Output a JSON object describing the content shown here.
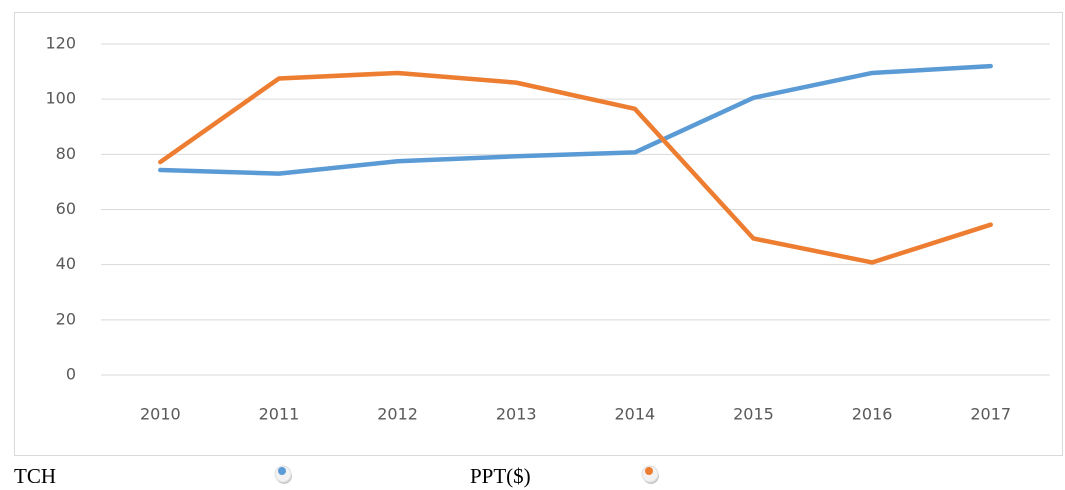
{
  "chart_data": {
    "type": "line",
    "categories": [
      "2010",
      "2011",
      "2012",
      "2013",
      "2014",
      "2015",
      "2016",
      "2017"
    ],
    "series": [
      {
        "name": "TCH",
        "color": "#5b9bd5",
        "values": [
          74.3,
          73,
          77.5,
          79.3,
          80.7,
          100.5,
          109.5,
          112
        ]
      },
      {
        "name": "PPT($)",
        "color": "#ed7d31",
        "values": [
          77.2,
          107.5,
          109.5,
          106,
          96.5,
          49.5,
          40.8,
          54.5
        ]
      }
    ],
    "ylim": [
      0,
      120
    ],
    "yticks": [
      0,
      20,
      40,
      60,
      80,
      100,
      120
    ],
    "grid": true,
    "legend": "bottom"
  }
}
